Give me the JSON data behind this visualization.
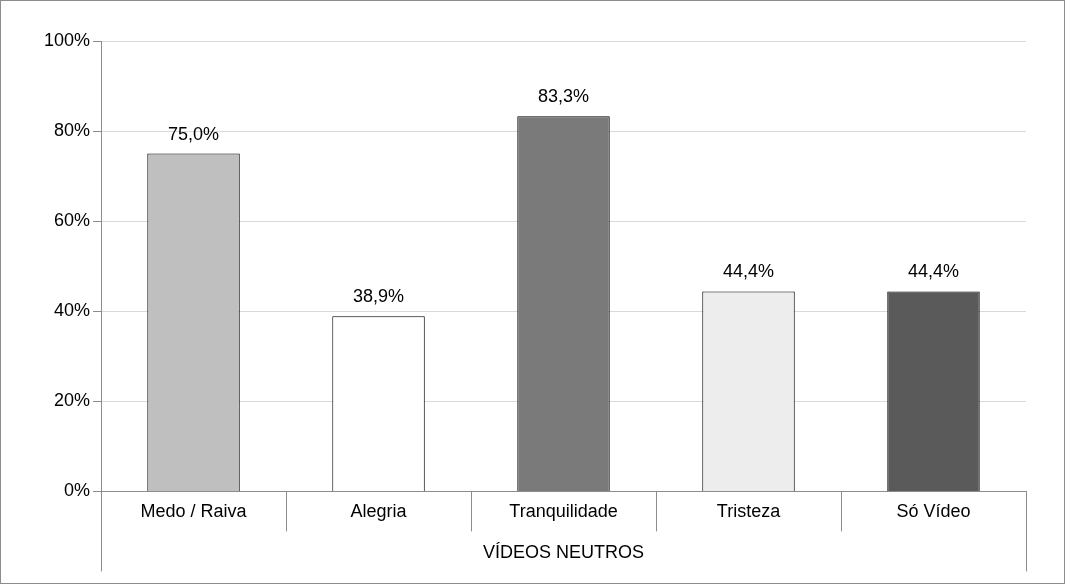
{
  "chart_data": {
    "type": "bar",
    "categories": [
      "Medo / Raiva",
      "Alegria",
      "Tranquilidade",
      "Tristeza",
      "Só Vídeo"
    ],
    "values": [
      75.0,
      38.9,
      83.3,
      44.4,
      44.4
    ],
    "colors": [
      "#bfbfbf",
      "#ffffff",
      "#7a7a7a",
      "#ededed",
      "#5a5a5a"
    ],
    "value_labels": [
      "75,0%",
      "38,9%",
      "83,3%",
      "44,4%",
      "44,4%"
    ],
    "xlabel": "VÍDEOS NEUTROS",
    "ylim": [
      0,
      100
    ],
    "yticks": [
      {
        "value": 0,
        "label": "0%"
      },
      {
        "value": 20,
        "label": "20%"
      },
      {
        "value": 40,
        "label": "40%"
      },
      {
        "value": 60,
        "label": "60%"
      },
      {
        "value": 80,
        "label": "80%"
      },
      {
        "value": 100,
        "label": "100%"
      }
    ],
    "grid": "y",
    "legend": false
  }
}
